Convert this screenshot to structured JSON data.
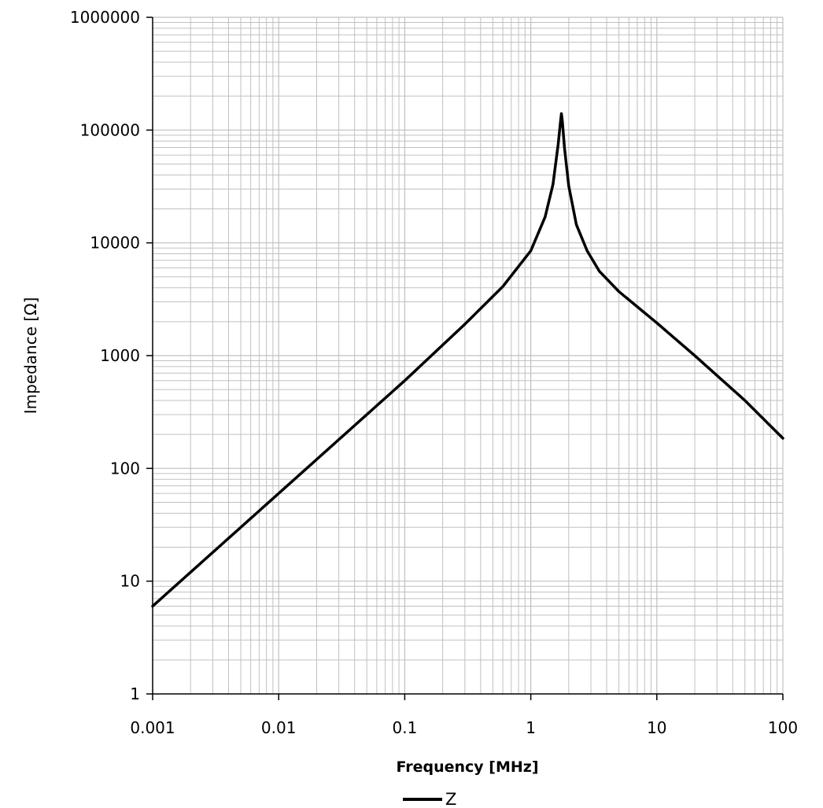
{
  "chart_data": {
    "type": "line",
    "title": "",
    "xlabel": "Frequency [MHz]",
    "ylabel": "Impedance [Ω]",
    "x_scale": "log",
    "y_scale": "log",
    "xlim": [
      0.001,
      100
    ],
    "ylim": [
      1,
      1000000
    ],
    "grid": true,
    "legend_position": "bottom-center",
    "x_tick_labels": [
      "0.001",
      "0.01",
      "0.1",
      "1",
      "10",
      "100"
    ],
    "y_tick_labels": [
      "1",
      "10",
      "100",
      "1000",
      "10000",
      "100000",
      "1000000"
    ],
    "line_color": "#000000",
    "grid_color": "#c0c0c0",
    "series": [
      {
        "name": "Z",
        "x": [
          0.001,
          0.01,
          0.1,
          0.3,
          0.6,
          1.0,
          1.3,
          1.5,
          1.65,
          1.72,
          1.75,
          1.78,
          1.85,
          2.0,
          2.3,
          2.8,
          3.5,
          5.0,
          10,
          20,
          50,
          100
        ],
        "y": [
          6,
          60,
          600,
          1900,
          4100,
          8500,
          17000,
          33000,
          75000,
          118000,
          140000,
          120000,
          70000,
          32000,
          14500,
          8500,
          5600,
          3700,
          1950,
          1000,
          400,
          185
        ]
      }
    ]
  }
}
